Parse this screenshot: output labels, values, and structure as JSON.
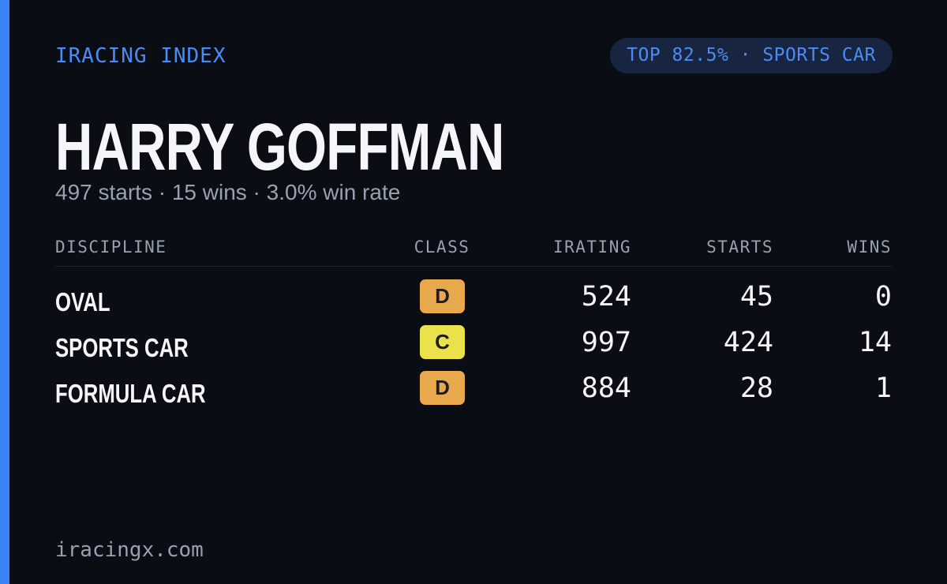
{
  "header": {
    "brand": "IRACING INDEX",
    "badge": "TOP 82.5% · SPORTS CAR"
  },
  "profile": {
    "name": "HARRY GOFFMAN",
    "summary": "497 starts · 15 wins · 3.0% win rate"
  },
  "table": {
    "columns": [
      "DISCIPLINE",
      "CLASS",
      "IRATING",
      "STARTS",
      "WINS"
    ],
    "rows": [
      {
        "discipline": "OVAL",
        "class": "D",
        "class_color": "#e8a84c",
        "irating": 524,
        "starts": 45,
        "wins": 0
      },
      {
        "discipline": "SPORTS CAR",
        "class": "C",
        "class_color": "#ebe14a",
        "irating": 997,
        "starts": 424,
        "wins": 14
      },
      {
        "discipline": "FORMULA CAR",
        "class": "D",
        "class_color": "#e8a84c",
        "irating": 884,
        "starts": 28,
        "wins": 1
      }
    ]
  },
  "footer": {
    "site": "iracingx.com"
  }
}
